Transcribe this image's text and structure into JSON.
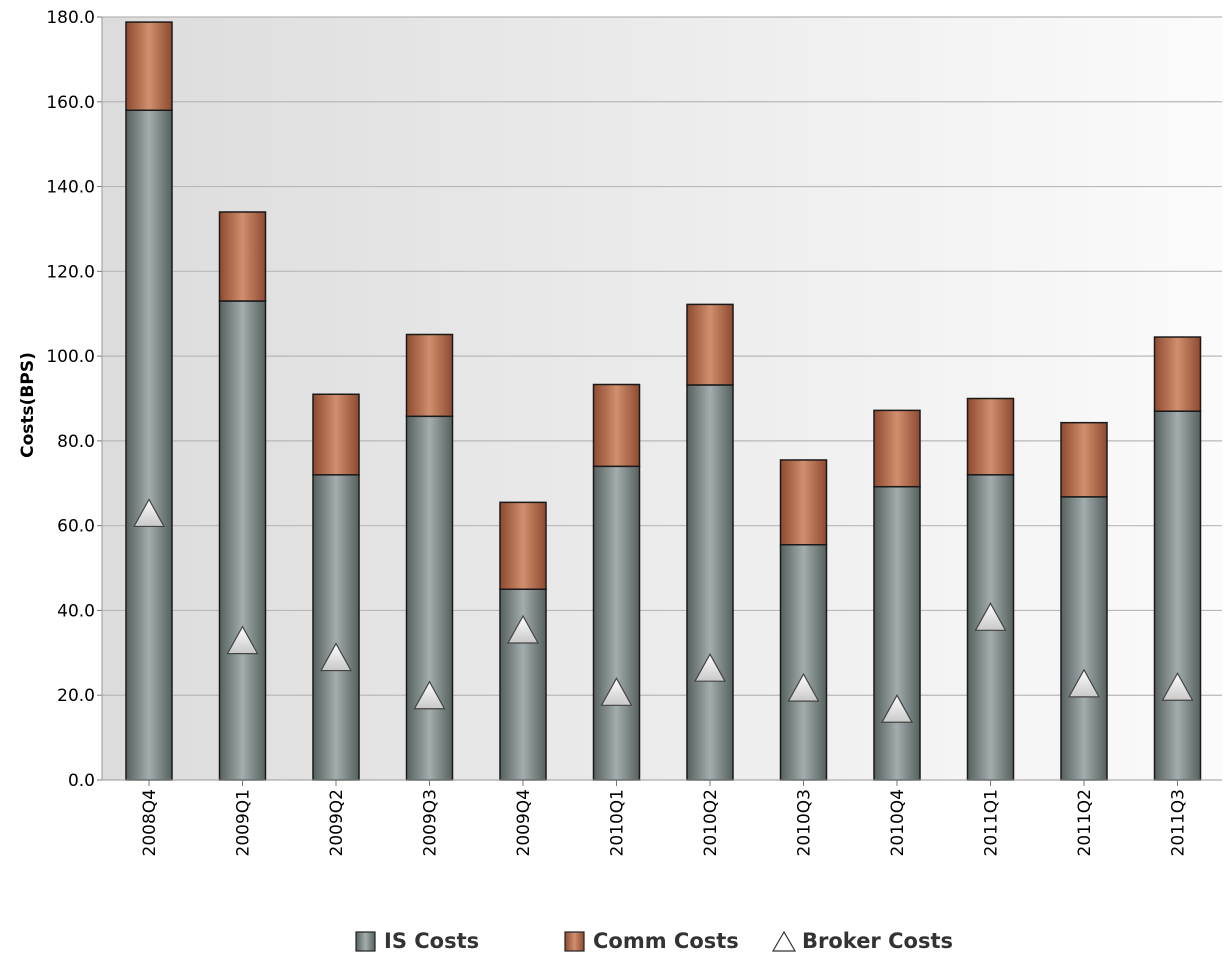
{
  "chart_data": {
    "type": "bar",
    "stacked": true,
    "categories": [
      "2008Q4",
      "2009Q1",
      "2009Q2",
      "2009Q3",
      "2009Q4",
      "2010Q1",
      "2010Q2",
      "2010Q3",
      "2010Q4",
      "2011Q1",
      "2011Q2",
      "2011Q3"
    ],
    "series": [
      {
        "name": "IS Costs",
        "kind": "bar",
        "color": "#7f8c8c",
        "values": [
          158.0,
          113.0,
          72.0,
          85.8,
          45.0,
          74.0,
          93.2,
          55.5,
          69.2,
          72.0,
          66.8,
          87.0
        ]
      },
      {
        "name": "Comm Costs",
        "kind": "bar",
        "color": "#b56a4a",
        "values": [
          20.8,
          21.0,
          19.0,
          19.3,
          20.5,
          19.3,
          19.0,
          20.0,
          18.0,
          18.0,
          17.5,
          17.5
        ]
      },
      {
        "name": "Broker Costs",
        "kind": "marker",
        "marker": "triangle",
        "color": "#ffffff",
        "values": [
          63.0,
          33.0,
          29.0,
          20.0,
          35.5,
          20.8,
          26.5,
          21.8,
          16.8,
          38.5,
          22.8,
          22.0
        ]
      }
    ],
    "title": "",
    "xlabel": "",
    "ylabel": "Costs(BPS)",
    "ylim": [
      0,
      180
    ],
    "yticks": [
      "0.0",
      "20.0",
      "40.0",
      "60.0",
      "80.0",
      "100.0",
      "120.0",
      "140.0",
      "160.0",
      "180.0"
    ],
    "grid": true,
    "legend_position": "bottom"
  }
}
